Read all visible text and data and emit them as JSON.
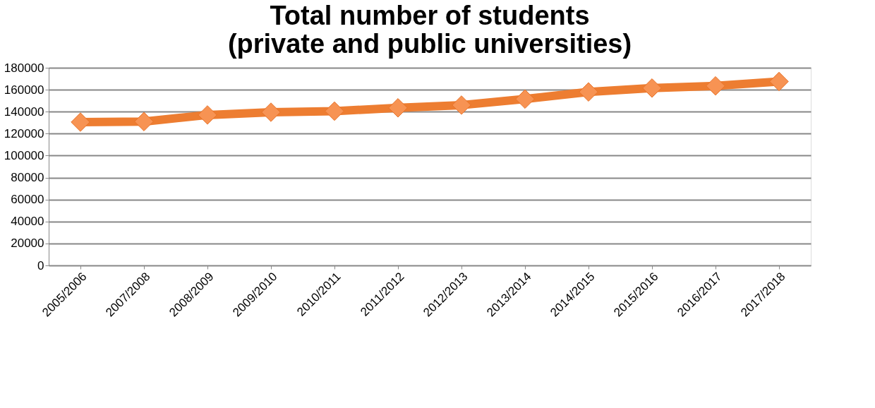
{
  "chart_data": {
    "type": "line",
    "title": [
      "Total number of students",
      "(private and public universities)"
    ],
    "categories": [
      "2005/2006",
      "2007/2008",
      "2008/2009",
      "2009/2010",
      "2010/2011",
      "2011/2012",
      "2012/2013",
      "2013/2014",
      "2014/2015",
      "2015/2016",
      "2016/2017",
      "2017/2018"
    ],
    "series": [
      {
        "color": "#ed7d31",
        "values": [
          130500,
          131000,
          137000,
          139500,
          140500,
          143500,
          146000,
          151500,
          158000,
          161500,
          163500,
          167500
        ]
      }
    ],
    "ylim": [
      0,
      180000
    ],
    "yticks": [
      0,
      20000,
      40000,
      60000,
      80000,
      100000,
      120000,
      140000,
      160000,
      180000
    ],
    "grid": "y",
    "marker": "diamond"
  }
}
